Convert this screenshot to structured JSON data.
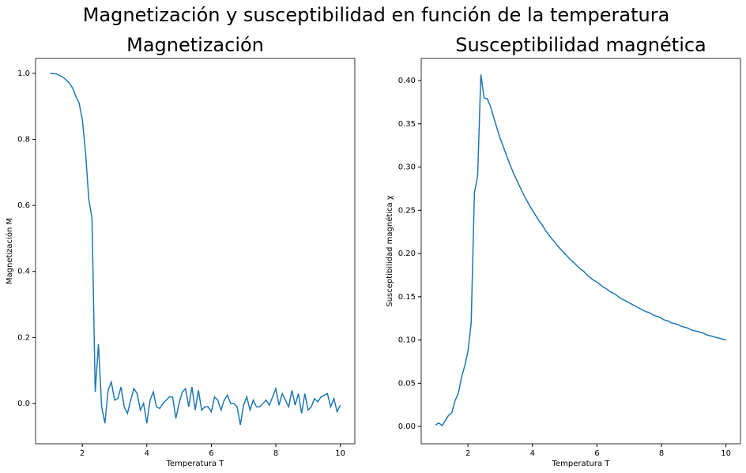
{
  "title": "Magnetización y susceptibilidad en función de la temperatura",
  "chart_data": [
    {
      "type": "line",
      "title": "Magnetización",
      "x_label": "Temperatura T",
      "y_label": "Magnetización M",
      "xlim": [
        0.55,
        10.45
      ],
      "ylim": [
        -0.122,
        1.045
      ],
      "xticks": [
        2,
        4,
        6,
        8,
        10
      ],
      "yticks": [
        {
          "value": 0,
          "label": "0.0"
        },
        {
          "value": 0.2,
          "label": "0.2"
        },
        {
          "value": 0.4,
          "label": "0.4"
        },
        {
          "value": 0.6,
          "label": "0.6"
        },
        {
          "value": 0.8,
          "label": "0.8"
        },
        {
          "value": 1,
          "label": "1.0"
        }
      ],
      "series": [
        {
          "color": "#1f77b4",
          "x": [
            1.0,
            1.1,
            1.2,
            1.3,
            1.4,
            1.5,
            1.6,
            1.7,
            1.8,
            1.9,
            2.0,
            2.1,
            2.2,
            2.3,
            2.4,
            2.5,
            2.6,
            2.7,
            2.8,
            2.9,
            3.0,
            3.1,
            3.2,
            3.3,
            3.4,
            3.5,
            3.6,
            3.7,
            3.8,
            3.9,
            4.0,
            4.1,
            4.2,
            4.3,
            4.4,
            4.5,
            4.6,
            4.7,
            4.8,
            4.9,
            5.0,
            5.1,
            5.2,
            5.3,
            5.4,
            5.5,
            5.6,
            5.7,
            5.8,
            5.9,
            6.0,
            6.1,
            6.2,
            6.3,
            6.4,
            6.5,
            6.6,
            6.7,
            6.8,
            6.9,
            7.0,
            7.1,
            7.2,
            7.3,
            7.4,
            7.5,
            7.6,
            7.7,
            7.8,
            7.9,
            8.0,
            8.1,
            8.2,
            8.3,
            8.4,
            8.5,
            8.6,
            8.7,
            8.8,
            8.9,
            9.0,
            9.1,
            9.2,
            9.3,
            9.4,
            9.5,
            9.6,
            9.7,
            9.8,
            9.9,
            10.0
          ],
          "values": [
            1.0,
            0.999,
            0.998,
            0.993,
            0.988,
            0.98,
            0.97,
            0.955,
            0.93,
            0.91,
            0.86,
            0.76,
            0.62,
            0.56,
            0.035,
            0.18,
            -0.01,
            -0.06,
            0.04,
            0.065,
            0.01,
            0.015,
            0.05,
            -0.01,
            -0.03,
            0.01,
            0.045,
            0.03,
            -0.02,
            0.0,
            -0.06,
            0.01,
            0.035,
            -0.01,
            -0.015,
            0.0,
            0.01,
            0.02,
            0.02,
            -0.045,
            0.0,
            0.035,
            0.045,
            -0.01,
            0.05,
            -0.02,
            0.04,
            -0.02,
            -0.01,
            -0.01,
            -0.025,
            0.02,
            0.01,
            -0.02,
            0.01,
            0.025,
            0.0,
            0.0,
            -0.01,
            -0.065,
            -0.005,
            0.02,
            -0.02,
            0.01,
            -0.01,
            -0.01,
            0.0,
            0.01,
            -0.005,
            0.02,
            0.045,
            -0.005,
            0.03,
            0.01,
            -0.01,
            0.04,
            -0.005,
            0.03,
            -0.03,
            0.03,
            -0.02,
            -0.01,
            0.015,
            0.005,
            0.02,
            0.025,
            0.03,
            -0.01,
            0.015,
            -0.025,
            -0.005
          ]
        }
      ]
    },
    {
      "type": "line",
      "title": "Susceptibilidad magnética",
      "x_label": "Temperatura T",
      "y_label": "Susceptibilidad magnética χ",
      "xlim": [
        0.55,
        10.45
      ],
      "ylim": [
        -0.02,
        0.4256
      ],
      "xticks": [
        2,
        4,
        6,
        8,
        10
      ],
      "yticks": [
        {
          "value": 0,
          "label": "0.00"
        },
        {
          "value": 0.05,
          "label": "0.05"
        },
        {
          "value": 0.1,
          "label": "0.10"
        },
        {
          "value": 0.15,
          "label": "0.15"
        },
        {
          "value": 0.2,
          "label": "0.20"
        },
        {
          "value": 0.25,
          "label": "0.25"
        },
        {
          "value": 0.3,
          "label": "0.30"
        },
        {
          "value": 0.35,
          "label": "0.35"
        },
        {
          "value": 0.4,
          "label": "0.40"
        }
      ],
      "series": [
        {
          "color": "#1f77b4",
          "x": [
            1.0,
            1.1,
            1.2,
            1.3,
            1.4,
            1.5,
            1.6,
            1.7,
            1.8,
            1.9,
            2.0,
            2.1,
            2.2,
            2.3,
            2.4,
            2.5,
            2.6,
            2.7,
            2.8,
            2.9,
            3.0,
            3.1,
            3.2,
            3.3,
            3.4,
            3.5,
            3.6,
            3.7,
            3.8,
            3.9,
            4.0,
            4.1,
            4.2,
            4.3,
            4.4,
            4.5,
            4.6,
            4.7,
            4.8,
            4.9,
            5.0,
            5.1,
            5.2,
            5.3,
            5.4,
            5.5,
            5.6,
            5.7,
            5.8,
            5.9,
            6.0,
            6.1,
            6.2,
            6.3,
            6.4,
            6.5,
            6.6,
            6.7,
            6.8,
            6.9,
            7.0,
            7.1,
            7.2,
            7.3,
            7.4,
            7.5,
            7.6,
            7.7,
            7.8,
            7.9,
            8.0,
            8.1,
            8.2,
            8.3,
            8.4,
            8.5,
            8.6,
            8.7,
            8.8,
            8.9,
            9.0,
            9.1,
            9.2,
            9.3,
            9.4,
            9.5,
            9.6,
            9.7,
            9.8,
            9.9,
            10.0
          ],
          "values": [
            0.002,
            0.004,
            0.001,
            0.007,
            0.013,
            0.016,
            0.03,
            0.038,
            0.057,
            0.07,
            0.087,
            0.12,
            0.27,
            0.29,
            0.407,
            0.38,
            0.379,
            0.37,
            0.357,
            0.345,
            0.333,
            0.323,
            0.313,
            0.303,
            0.294,
            0.286,
            0.278,
            0.27,
            0.263,
            0.256,
            0.25,
            0.244,
            0.238,
            0.233,
            0.227,
            0.222,
            0.217,
            0.213,
            0.208,
            0.204,
            0.2,
            0.196,
            0.192,
            0.189,
            0.185,
            0.182,
            0.179,
            0.175,
            0.172,
            0.169,
            0.167,
            0.164,
            0.161,
            0.159,
            0.156,
            0.154,
            0.152,
            0.149,
            0.147,
            0.145,
            0.143,
            0.141,
            0.139,
            0.137,
            0.135,
            0.133,
            0.132,
            0.13,
            0.128,
            0.127,
            0.125,
            0.123,
            0.122,
            0.12,
            0.119,
            0.118,
            0.116,
            0.115,
            0.114,
            0.112,
            0.111,
            0.11,
            0.109,
            0.108,
            0.106,
            0.105,
            0.104,
            0.103,
            0.102,
            0.101,
            0.1
          ]
        }
      ]
    }
  ]
}
